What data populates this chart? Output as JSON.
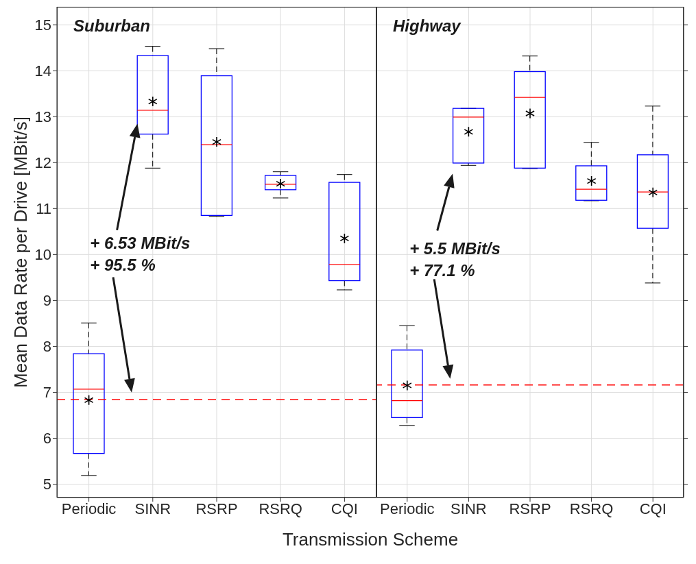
{
  "chart_data": [
    {
      "type": "box",
      "title": "Suburban",
      "xlabel": "Transmission Scheme",
      "ylabel": "Mean Data Rate per Drive [MBit/s]",
      "categories": [
        "Periodic",
        "SINR",
        "RSRP",
        "RSRQ",
        "CQI"
      ],
      "marker": "cross",
      "series": [
        {
          "color": "#0000ff",
          "boxes": [
            {
              "low": 5.19,
              "q1": 5.67,
              "median": 7.07,
              "q3": 7.84,
              "high": 8.51
            },
            {
              "low": 11.88,
              "q1": 12.62,
              "median": 13.14,
              "q3": 14.33,
              "high": 14.53
            },
            {
              "low": 10.83,
              "q1": 10.85,
              "median": 12.39,
              "q3": 13.89,
              "high": 14.48
            },
            {
              "low": 11.23,
              "q1": 11.41,
              "median": 11.53,
              "q3": 11.72,
              "high": 11.8
            },
            {
              "low": 9.23,
              "q1": 9.43,
              "median": 9.78,
              "q3": 11.57,
              "high": 11.74
            }
          ]
        },
        {
          "type": "scatter",
          "color": "#000000",
          "x": [
            "Periodic",
            "SINR",
            "RSRP",
            "RSRQ",
            "CQI"
          ],
          "values": [
            6.83,
            13.33,
            12.45,
            11.54,
            10.35
          ]
        }
      ],
      "ylim": [
        4.71,
        15.39
      ],
      "yticks": [
        5,
        6,
        7,
        8,
        9,
        10,
        11,
        12,
        13,
        14,
        15
      ],
      "grid": true,
      "ref_lines": [
        {
          "axis": "y",
          "value": 6.84,
          "color": "#ff0000",
          "line_style": "dashed"
        }
      ],
      "annotations": [
        "+ 6.53 MBit/s",
        "+ 95.5 %"
      ]
    },
    {
      "type": "box",
      "title": "Highway",
      "categories": [
        "Periodic",
        "SINR",
        "RSRP",
        "RSRQ",
        "CQI"
      ],
      "marker": "cross",
      "series": [
        {
          "color": "#0000ff",
          "boxes": [
            {
              "low": 6.28,
              "q1": 6.45,
              "median": 6.82,
              "q3": 7.92,
              "high": 8.45
            },
            {
              "low": 11.94,
              "q1": 11.99,
              "median": 12.99,
              "q3": 13.18,
              "high": 13.18
            },
            {
              "low": 11.87,
              "q1": 11.88,
              "median": 13.42,
              "q3": 13.98,
              "high": 14.32
            },
            {
              "low": 11.17,
              "q1": 11.18,
              "median": 11.42,
              "q3": 11.93,
              "high": 12.44
            },
            {
              "low": 9.38,
              "q1": 10.57,
              "median": 11.36,
              "q3": 12.17,
              "high": 13.23
            }
          ]
        },
        {
          "type": "scatter",
          "color": "#000000",
          "x": [
            "Periodic",
            "SINR",
            "RSRP",
            "RSRQ",
            "CQI"
          ],
          "values": [
            7.15,
            12.67,
            13.07,
            11.6,
            11.35
          ]
        }
      ],
      "ylim": [
        4.71,
        15.39
      ],
      "yticks": [
        5,
        6,
        7,
        8,
        9,
        10,
        11,
        12,
        13,
        14,
        15
      ],
      "grid": true,
      "tick_labels": "x",
      "ref_lines": [
        {
          "axis": "y",
          "value": 7.16,
          "color": "#ff0000",
          "line_style": "dashed"
        }
      ],
      "annotations": [
        "+ 5.5 MBit/s",
        "+ 77.1 %"
      ]
    }
  ]
}
